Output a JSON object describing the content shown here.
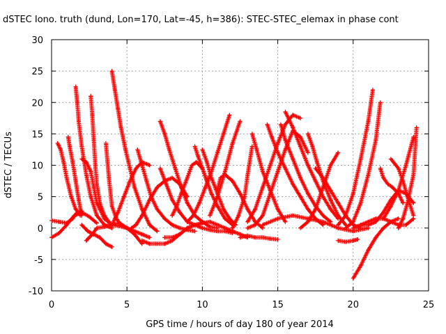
{
  "chart_data": {
    "type": "scatter",
    "title": "dSTEC Iono. truth (dund, Lon=170, Lat=-45, h=386): STEC-STEC_elemax in phase cont",
    "xlabel": "GPS time / hours of day 180 of year 2014",
    "ylabel": "dSTEC  / TECUs",
    "xlim": [
      0,
      25
    ],
    "ylim": [
      -10,
      30
    ],
    "xticks": [
      "0",
      "5",
      "10",
      "15",
      "20",
      "25"
    ],
    "yticks": [
      "-10",
      "-5",
      "0",
      "5",
      "10",
      "15",
      "20",
      "25",
      "30"
    ],
    "grid": true,
    "marker": "+",
    "color": "#ff0000",
    "series": [
      {
        "x": [
          0.0,
          0.5,
          1.0,
          1.4,
          1.7,
          2.0
        ],
        "y": [
          1.2,
          1.0,
          0.8,
          1.5,
          2.5,
          2.7
        ]
      },
      {
        "x": [
          0.0,
          0.5,
          1.0,
          1.5,
          2.0,
          2.5,
          3.0
        ],
        "y": [
          -1.5,
          -0.8,
          0.5,
          2.0,
          2.5,
          1.8,
          0.8
        ]
      },
      {
        "x": [
          0.4,
          0.6,
          0.8,
          1.0,
          1.3,
          1.6,
          1.9
        ],
        "y": [
          13.5,
          12.5,
          10.5,
          8.0,
          5.0,
          3.0,
          2.0
        ]
      },
      {
        "x": [
          1.1,
          1.2,
          1.4,
          1.6,
          1.8,
          2.0
        ],
        "y": [
          14.5,
          13.0,
          10.5,
          7.5,
          4.5,
          2.0
        ]
      },
      {
        "x": [
          1.6,
          1.7,
          1.8,
          2.0,
          2.3,
          2.6,
          3.0,
          3.5,
          4.0
        ],
        "y": [
          22.5,
          20.0,
          17.0,
          13.0,
          8.5,
          5.0,
          2.0,
          0.5,
          0.0
        ]
      },
      {
        "x": [
          2.0,
          2.4,
          2.8,
          3.2,
          3.6,
          4.0
        ],
        "y": [
          0.5,
          -0.5,
          -1.0,
          -1.5,
          -2.5,
          -3.0
        ]
      },
      {
        "x": [
          2.0,
          2.3,
          2.6,
          2.8,
          3.0,
          3.5,
          4.0,
          4.5,
          5.0
        ],
        "y": [
          11.0,
          10.5,
          9.0,
          6.5,
          4.0,
          1.5,
          0.5,
          0.3,
          0.0
        ]
      },
      {
        "x": [
          2.6,
          2.7,
          2.8,
          2.9,
          3.0,
          3.2,
          3.5,
          3.8
        ],
        "y": [
          21.0,
          18.0,
          14.0,
          10.0,
          7.0,
          4.0,
          2.0,
          1.0
        ]
      },
      {
        "x": [
          2.3,
          2.7,
          3.0,
          3.5,
          4.0,
          4.5,
          5.0,
          5.5,
          6.0
        ],
        "y": [
          -2.0,
          -1.0,
          0.0,
          0.2,
          0.5,
          0.8,
          0.0,
          -1.0,
          -2.5
        ]
      },
      {
        "x": [
          3.6,
          3.8,
          4.0,
          4.3,
          4.6,
          5.0,
          5.5,
          6.0,
          6.5
        ],
        "y": [
          13.5,
          8.0,
          3.5,
          1.5,
          0.5,
          0.0,
          -0.5,
          -1.0,
          -1.5
        ]
      },
      {
        "x": [
          4.0,
          4.2,
          4.4,
          4.6,
          4.9,
          5.2,
          5.5,
          6.0,
          6.5,
          7.0
        ],
        "y": [
          25.0,
          22.0,
          19.0,
          16.0,
          12.5,
          9.5,
          6.5,
          3.0,
          0.5,
          -0.5
        ]
      },
      {
        "x": [
          4.0,
          4.4,
          4.8,
          5.2,
          5.6,
          6.0,
          6.5
        ],
        "y": [
          0.5,
          2.5,
          5.0,
          7.5,
          9.5,
          10.5,
          10.0
        ]
      },
      {
        "x": [
          5.3,
          5.6,
          6.0,
          6.5,
          7.0,
          7.5,
          8.0,
          8.5,
          9.0
        ],
        "y": [
          0.0,
          0.5,
          2.0,
          4.5,
          6.5,
          7.5,
          8.0,
          7.0,
          5.0
        ]
      },
      {
        "x": [
          5.7,
          6.0,
          6.3,
          6.6,
          7.0,
          7.5,
          8.0,
          8.5,
          9.0,
          9.5
        ],
        "y": [
          12.5,
          10.0,
          7.5,
          5.0,
          3.0,
          1.5,
          0.5,
          0.0,
          -0.3,
          -0.5
        ]
      },
      {
        "x": [
          6.0,
          6.5,
          7.0,
          7.5,
          8.0,
          8.5,
          9.0,
          9.5,
          10.0
        ],
        "y": [
          -2.0,
          -2.5,
          -2.5,
          -2.5,
          -2.0,
          -1.0,
          0.0,
          0.5,
          0.8
        ]
      },
      {
        "x": [
          7.2,
          7.5,
          7.8,
          8.2,
          8.6,
          9.0,
          9.5,
          10.0,
          10.5,
          11.0
        ],
        "y": [
          17.0,
          15.0,
          12.5,
          9.5,
          6.5,
          4.0,
          2.0,
          1.0,
          0.2,
          0.0
        ]
      },
      {
        "x": [
          7.2,
          7.6,
          8.0,
          8.5,
          9.0,
          9.5,
          10.0,
          10.5,
          11.0,
          11.5,
          12.0
        ],
        "y": [
          9.5,
          7.0,
          4.5,
          2.5,
          1.0,
          0.5,
          0.0,
          -0.3,
          -0.5,
          -0.5,
          -0.8
        ]
      },
      {
        "x": [
          7.5,
          8.0,
          8.5,
          9.0,
          9.5,
          10.0,
          10.5,
          11.0,
          11.5,
          12.0,
          12.5,
          13.0
        ],
        "y": [
          -1.5,
          -1.5,
          -1.0,
          0.0,
          0.5,
          0.8,
          1.0,
          0.5,
          0.0,
          -0.5,
          -1.0,
          -1.5
        ]
      },
      {
        "x": [
          8.0,
          8.3,
          8.6,
          9.0,
          9.3,
          9.6,
          10.0,
          10.3
        ],
        "y": [
          2.0,
          3.5,
          5.5,
          8.0,
          10.0,
          10.5,
          9.5,
          7.5
        ]
      },
      {
        "x": [
          9.5,
          9.7,
          10.0,
          10.3,
          10.6,
          11.0,
          11.5,
          12.0
        ],
        "y": [
          13.0,
          11.5,
          9.5,
          7.5,
          5.5,
          3.5,
          1.5,
          0.5
        ]
      },
      {
        "x": [
          9.0,
          9.4,
          9.8,
          10.2,
          10.6,
          11.0,
          11.4,
          11.8
        ],
        "y": [
          1.0,
          2.0,
          4.0,
          6.5,
          9.0,
          12.0,
          15.0,
          18.0
        ]
      },
      {
        "x": [
          10.0,
          10.3,
          10.6,
          11.0,
          11.4,
          11.8,
          12.2
        ],
        "y": [
          12.5,
          10.5,
          8.0,
          5.5,
          3.0,
          1.5,
          0.5
        ]
      },
      {
        "x": [
          11.0,
          11.2,
          11.5,
          12.0,
          12.5,
          13.0,
          13.5,
          14.0
        ],
        "y": [
          6.0,
          8.0,
          8.5,
          7.5,
          5.5,
          3.0,
          1.0,
          0.0
        ]
      },
      {
        "x": [
          10.5,
          11.0,
          11.5,
          12.0,
          12.5
        ],
        "y": [
          2.0,
          5.0,
          9.0,
          13.5,
          17.0
        ]
      },
      {
        "x": [
          12.5,
          13.0,
          13.5,
          14.0,
          14.5,
          15.0
        ],
        "y": [
          -1.5,
          -1.2,
          -1.5,
          -1.5,
          -1.7,
          -1.8
        ]
      },
      {
        "x": [
          12.0,
          12.4,
          12.8,
          13.0,
          13.3
        ],
        "y": [
          0.0,
          2.0,
          5.0,
          8.5,
          13.0
        ]
      },
      {
        "x": [
          13.3,
          13.6,
          14.0,
          14.5,
          15.0,
          15.5
        ],
        "y": [
          15.0,
          12.5,
          9.0,
          6.0,
          3.0,
          1.0
        ]
      },
      {
        "x": [
          13.0,
          13.5,
          14.0,
          14.5,
          15.0,
          15.5,
          16.0,
          16.5
        ],
        "y": [
          1.0,
          3.0,
          6.5,
          10.0,
          13.5,
          16.5,
          18.0,
          17.5
        ]
      },
      {
        "x": [
          13.0,
          13.5,
          14.0,
          14.5,
          15.0,
          15.5,
          16.0,
          16.5,
          17.0
        ],
        "y": [
          0.0,
          0.5,
          2.0,
          5.5,
          9.0,
          12.5,
          15.5,
          14.5,
          12.0
        ]
      },
      {
        "x": [
          14.3,
          14.6,
          15.0,
          15.5,
          16.0,
          16.5,
          17.0,
          17.5,
          18.0
        ],
        "y": [
          16.5,
          14.5,
          12.0,
          9.5,
          7.0,
          5.0,
          3.0,
          1.5,
          0.5
        ]
      },
      {
        "x": [
          15.2,
          15.5,
          16.0,
          16.5,
          17.0,
          17.5,
          18.0,
          18.5
        ],
        "y": [
          16.5,
          14.0,
          11.0,
          8.0,
          5.5,
          3.5,
          2.0,
          1.0
        ]
      },
      {
        "x": [
          15.5,
          16.0,
          16.5,
          17.0,
          17.5,
          18.0,
          18.5,
          19.0
        ],
        "y": [
          18.5,
          16.0,
          13.0,
          10.0,
          7.5,
          5.0,
          3.0,
          1.5
        ]
      },
      {
        "x": [
          14.0,
          15.0,
          16.0,
          17.0,
          18.0,
          19.0,
          20.0,
          21.0
        ],
        "y": [
          0.5,
          1.5,
          2.0,
          1.5,
          1.0,
          0.0,
          -0.5,
          0.0
        ]
      },
      {
        "x": [
          16.5,
          17.0,
          17.5,
          18.0,
          18.5,
          19.0
        ],
        "y": [
          0.0,
          1.0,
          3.0,
          6.5,
          10.0,
          12.0
        ]
      },
      {
        "x": [
          17.0,
          17.3,
          17.6,
          18.0,
          18.5,
          19.0,
          19.5
        ],
        "y": [
          15.0,
          13.0,
          10.5,
          7.5,
          4.5,
          2.0,
          0.5
        ]
      },
      {
        "x": [
          17.5,
          18.0,
          18.5,
          19.0,
          19.5,
          20.0,
          20.5
        ],
        "y": [
          9.5,
          8.0,
          6.0,
          4.0,
          2.0,
          0.5,
          0.0
        ]
      },
      {
        "x": [
          19.0,
          19.5,
          20.0,
          20.3
        ],
        "y": [
          -2.0,
          -2.2,
          -2.0,
          -1.8
        ]
      },
      {
        "x": [
          19.0,
          19.5,
          20.0,
          20.5,
          21.0,
          21.3
        ],
        "y": [
          0.5,
          2.0,
          5.5,
          11.0,
          17.0,
          22.0
        ]
      },
      {
        "x": [
          19.5,
          20.0,
          20.5,
          21.0,
          21.5,
          21.8
        ],
        "y": [
          0.0,
          1.0,
          4.0,
          8.5,
          14.0,
          20.0
        ]
      },
      {
        "x": [
          20.0,
          20.5,
          21.0,
          21.5,
          22.0,
          22.5,
          23.0
        ],
        "y": [
          -8.0,
          -6.0,
          -3.5,
          -1.5,
          0.0,
          1.0,
          1.5
        ]
      },
      {
        "x": [
          20.0,
          20.5,
          21.0,
          21.5,
          22.0,
          22.5,
          23.0,
          23.5,
          24.0
        ],
        "y": [
          0.0,
          0.5,
          0.5,
          1.0,
          2.5,
          4.5,
          6.0,
          5.5,
          4.0
        ]
      },
      {
        "x": [
          20.5,
          21.0,
          21.5,
          22.0,
          22.5,
          23.0,
          23.5,
          24.0
        ],
        "y": [
          0.5,
          1.0,
          1.5,
          1.5,
          1.0,
          0.5,
          0.5,
          1.5
        ]
      },
      {
        "x": [
          21.8,
          22.0,
          22.3,
          22.6,
          23.0,
          23.3
        ],
        "y": [
          9.5,
          8.0,
          7.0,
          6.5,
          5.5,
          4.0
        ]
      },
      {
        "x": [
          22.0,
          22.5,
          23.0,
          23.5,
          24.0
        ],
        "y": [
          1.5,
          3.5,
          6.0,
          10.0,
          14.5
        ]
      },
      {
        "x": [
          22.5,
          23.0,
          23.3,
          23.6,
          24.0
        ],
        "y": [
          11.0,
          9.5,
          7.5,
          5.0,
          2.0
        ]
      },
      {
        "x": [
          23.0,
          23.3,
          23.6,
          24.0,
          24.2
        ],
        "y": [
          0.0,
          1.5,
          4.0,
          8.5,
          16.0
        ]
      }
    ]
  }
}
